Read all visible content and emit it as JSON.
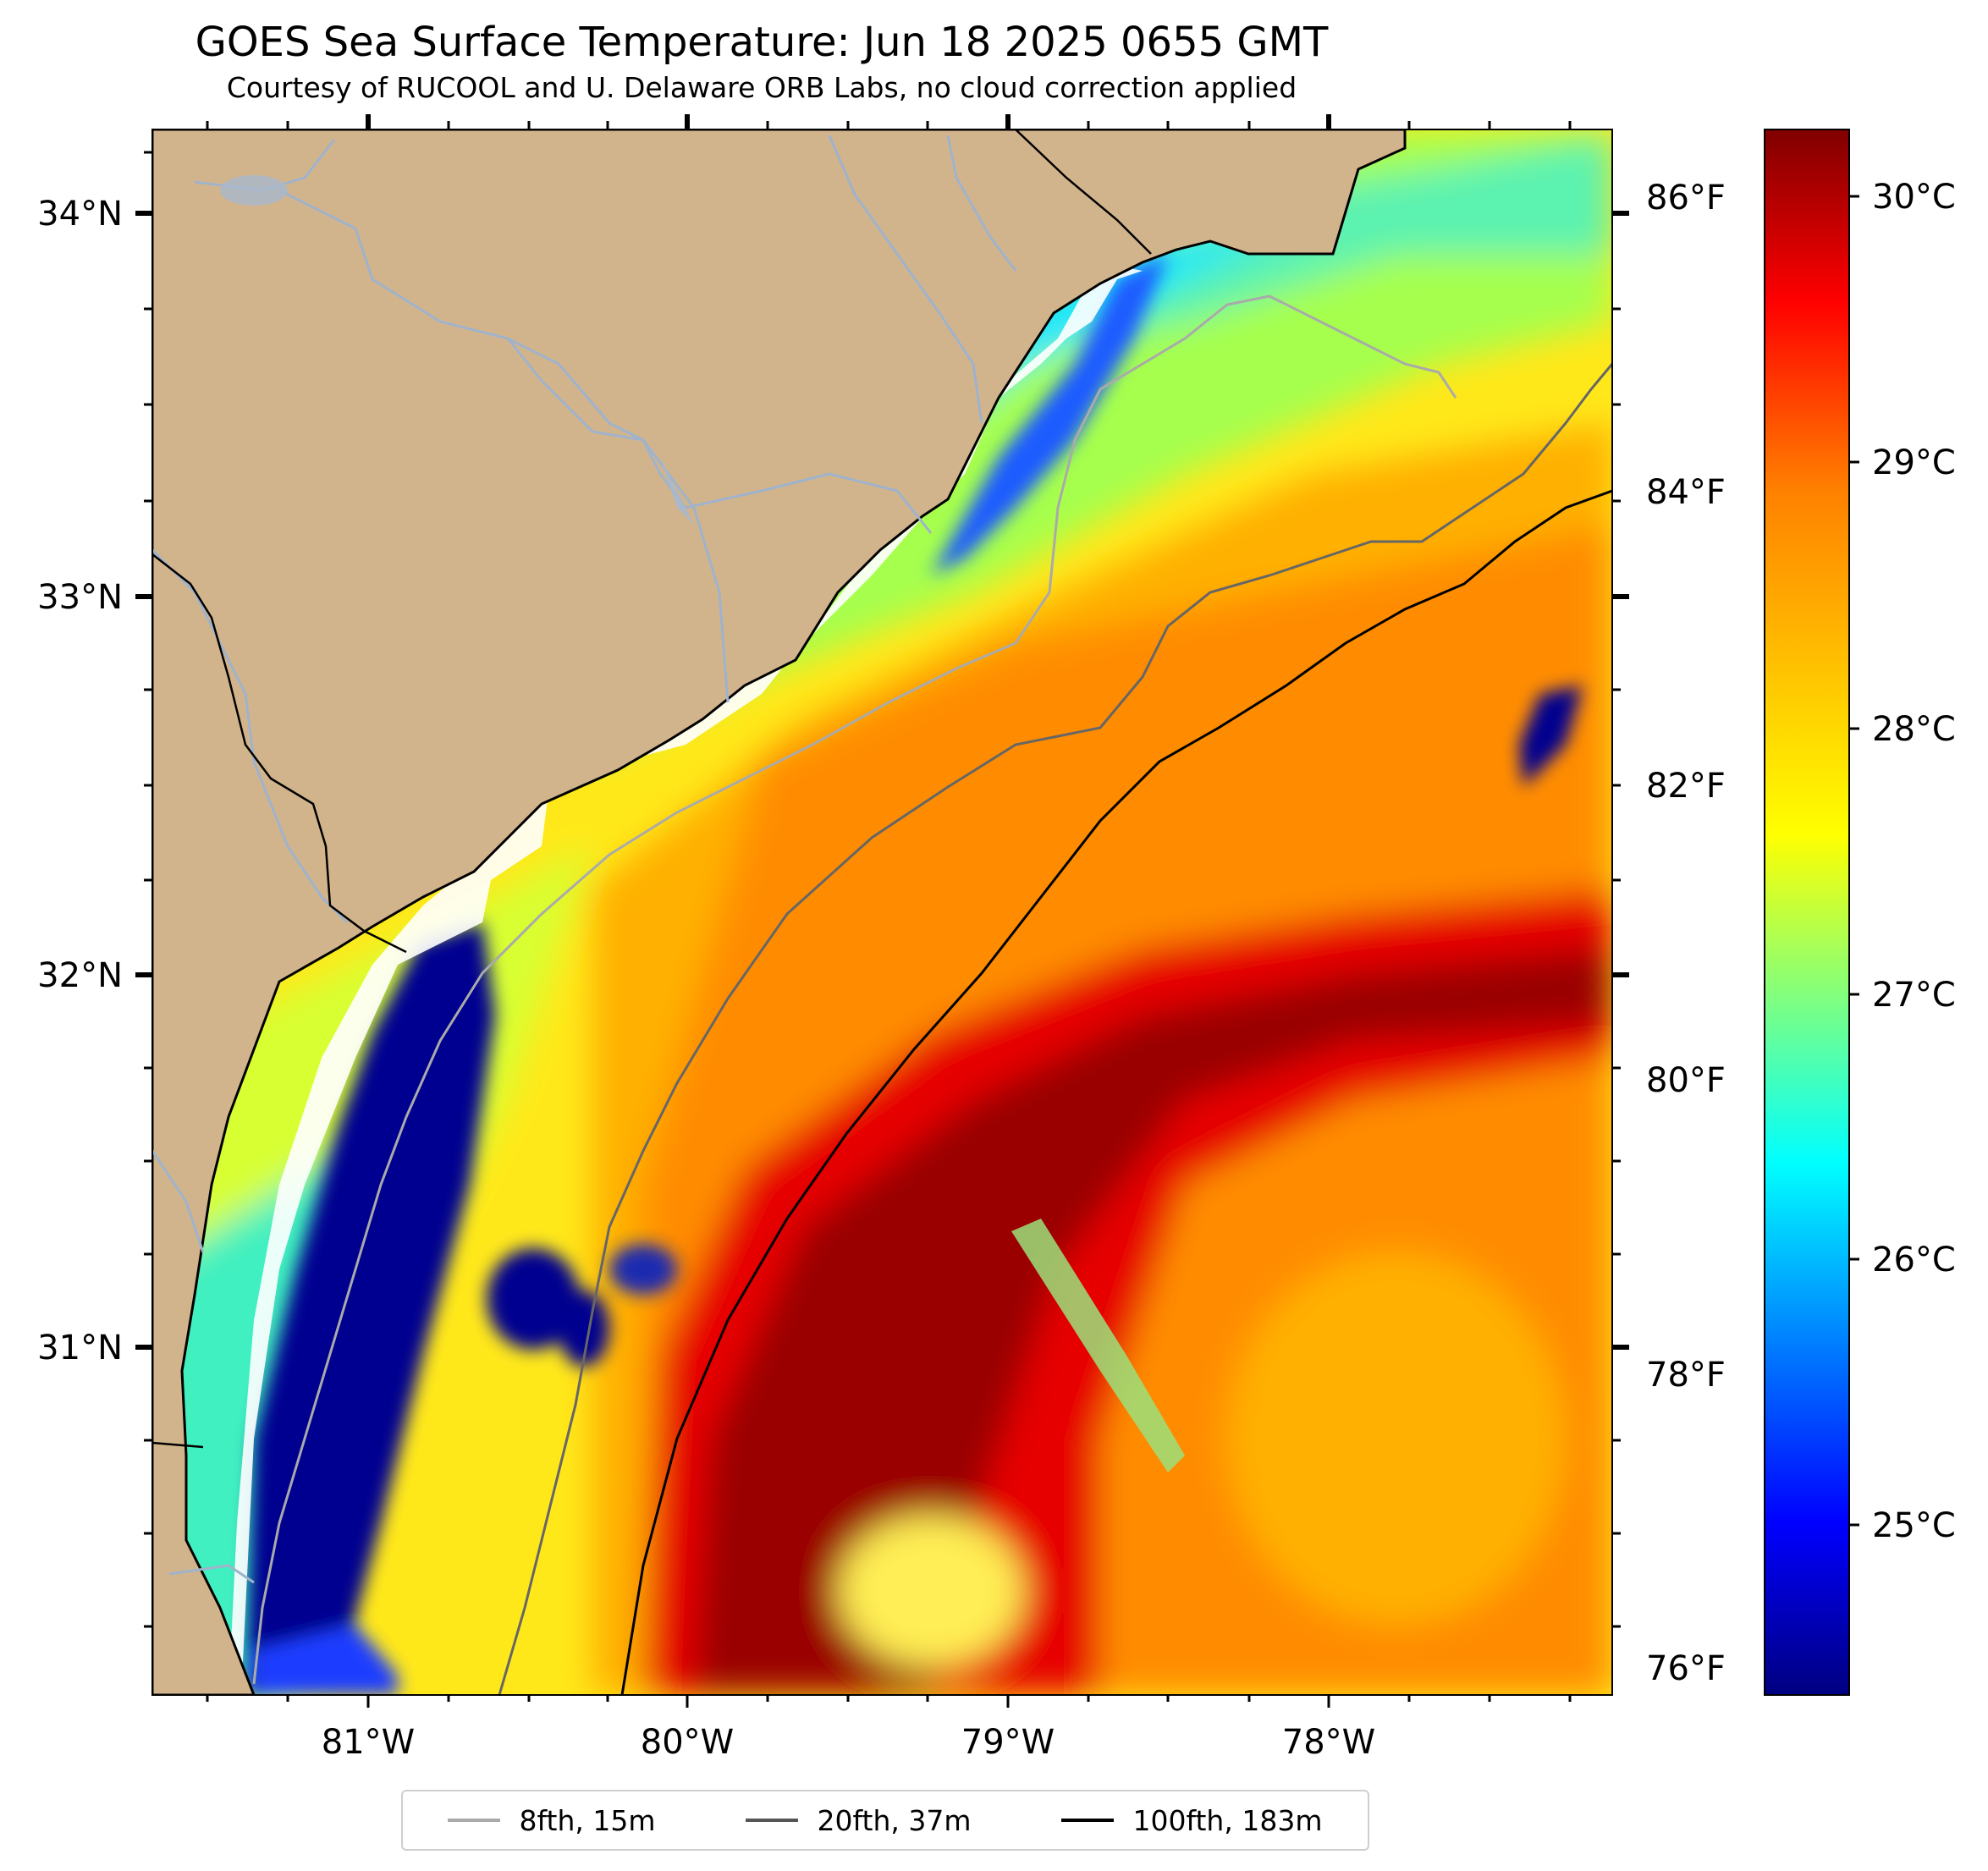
{
  "title": "GOES Sea Surface Temperature: Jun 18 2025 0655 GMT",
  "subtitle": "Courtesy of RUCOOL and U. Delaware ORB Labs, no cloud correction applied",
  "colors": {
    "land": "#d2b48c",
    "rivers": "#9fb3cc",
    "coast": "#000000",
    "no_data": "#ffffff",
    "colormap": [
      "#000080",
      "#0000ff",
      "#0080ff",
      "#00ffff",
      "#80ff80",
      "#ffff00",
      "#ff8000",
      "#ff0000",
      "#800000"
    ]
  },
  "map": {
    "lon_labels": [
      "81°W",
      "80°W",
      "79°W",
      "78°W"
    ],
    "lat_labels": [
      "34°N",
      "33°N",
      "32°N",
      "31°N"
    ],
    "lon_range": [
      -81.67,
      -77.1
    ],
    "lat_range": [
      30.15,
      34.22
    ]
  },
  "colorbar": {
    "celsius": [
      "30°C",
      "29°C",
      "28°C",
      "27°C",
      "26°C",
      "25°C"
    ],
    "fahrenheit": [
      "86°F",
      "84°F",
      "82°F",
      "80°F",
      "78°F",
      "76°F"
    ],
    "range_c": [
      24.3,
      30.3
    ]
  },
  "legend": [
    {
      "label": "8fth, 15m",
      "color": "#aaaaaa"
    },
    {
      "label": "20fth, 37m",
      "color": "#555555"
    },
    {
      "label": "100fth, 183m",
      "color": "#000000"
    }
  ]
}
